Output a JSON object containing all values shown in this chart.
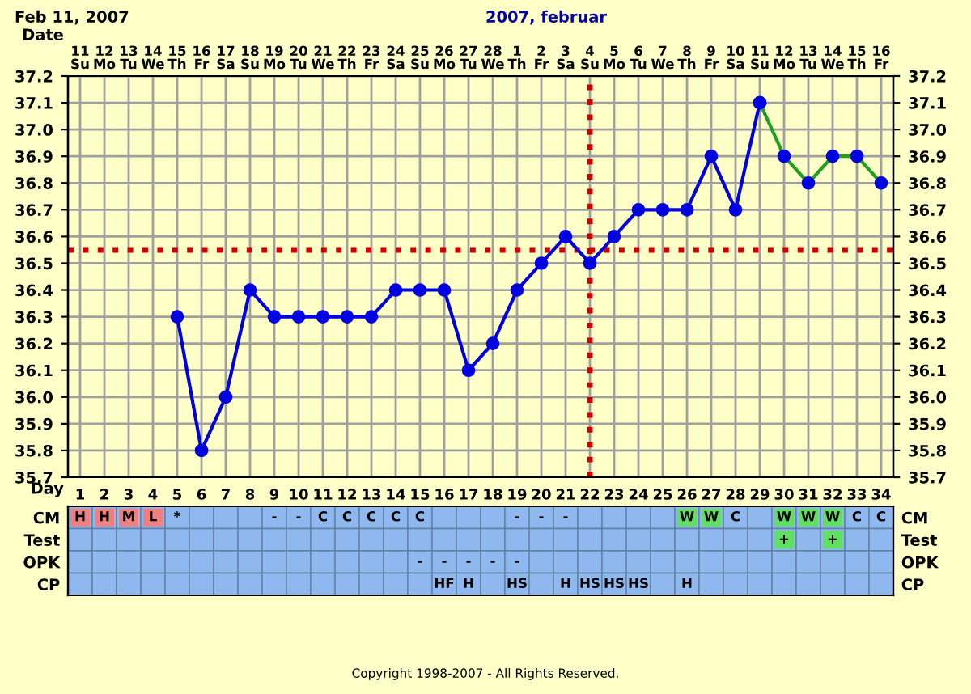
{
  "chart_data": [
    {
      "type": "line",
      "title": "Feb 11, 2007",
      "subtitle": "2007, februar",
      "xlabel": "Day",
      "x2label": "Date",
      "categories": [
        "1",
        "2",
        "3",
        "4",
        "5",
        "6",
        "7",
        "8",
        "9",
        "10",
        "11",
        "12",
        "13",
        "14",
        "15",
        "16",
        "17",
        "18",
        "19",
        "20",
        "21",
        "22",
        "23",
        "24",
        "25",
        "26",
        "27",
        "28",
        "29",
        "30",
        "31",
        "32",
        "33",
        "34"
      ],
      "series": [
        {
          "color": "#0000e0",
          "values": [
            null,
            null,
            null,
            null,
            36.3,
            35.8,
            36.0,
            36.4,
            36.3,
            36.3,
            36.3,
            36.3,
            36.3,
            36.4,
            36.4,
            36.4,
            36.1,
            36.2,
            36.4,
            36.5,
            36.6,
            36.5,
            36.6,
            36.7,
            36.7,
            36.7,
            36.9,
            36.7,
            37.1,
            null,
            null,
            null,
            null,
            null
          ]
        },
        {
          "color": "#20a020",
          "values": [
            null,
            null,
            null,
            null,
            null,
            null,
            null,
            null,
            null,
            null,
            null,
            null,
            null,
            null,
            null,
            null,
            null,
            null,
            null,
            null,
            null,
            null,
            null,
            null,
            null,
            null,
            null,
            null,
            37.1,
            36.9,
            36.8,
            36.9,
            36.9,
            36.8
          ]
        }
      ],
      "marker": "circle",
      "ylim": [
        35.7,
        37.2
      ],
      "yticks": [
        35.7,
        35.8,
        35.9,
        {
          "value": 36,
          "label": "36.0"
        },
        36.1,
        36.2,
        36.3,
        36.4,
        36.5,
        36.6,
        36.7,
        36.8,
        36.9,
        {
          "value": 37,
          "label": "37.0"
        },
        37.1,
        37.2
      ],
      "y2lim": [
        35.7,
        37.2
      ],
      "y2ticks": [
        35.7,
        35.8,
        35.9,
        {
          "value": 36,
          "label": "36.0"
        },
        36.1,
        36.2,
        36.3,
        36.4,
        36.5,
        36.6,
        36.7,
        36.8,
        36.9,
        {
          "value": 37,
          "label": "37.0"
        },
        37.1,
        37.2
      ],
      "grid": true,
      "ref_lines": [
        {
          "axis": "y",
          "value": 36.55,
          "color": "#cc0000",
          "line_style": "dotted"
        },
        {
          "axis": "x",
          "value": "22",
          "color": "#cc0000",
          "line_style": "dotted"
        }
      ],
      "x2lim": [
        "2007-02-10T12:00",
        "2007-03-16T12:00"
      ],
      "x2ticks": [
        {
          "value": "2007-02-11",
          "label": "11\nSu"
        },
        {
          "value": "2007-02-12",
          "label": "12\nMo"
        },
        {
          "value": "2007-02-13",
          "label": "13\nTu"
        },
        {
          "value": "2007-02-14",
          "label": "14\nWe"
        },
        {
          "value": "2007-02-15",
          "label": "15\nTh"
        },
        {
          "value": "2007-02-16",
          "label": "16\nFr"
        },
        {
          "value": "2007-02-17",
          "label": "17\nSa"
        },
        {
          "value": "2007-02-18",
          "label": "18\nSu"
        },
        {
          "value": "2007-02-19",
          "label": "19\nMo"
        },
        {
          "value": "2007-02-20",
          "label": "20\nTu"
        },
        {
          "value": "2007-02-21",
          "label": "21\nWe"
        },
        {
          "value": "2007-02-22",
          "label": "22\nTh"
        },
        {
          "value": "2007-02-23",
          "label": "23\nFr"
        },
        {
          "value": "2007-02-24",
          "label": "24\nSa"
        },
        {
          "value": "2007-02-25",
          "label": "25\nSu"
        },
        {
          "value": "2007-02-26",
          "label": "26\nMo"
        },
        {
          "value": "2007-02-27",
          "label": "27\nTu"
        },
        {
          "value": "2007-02-28",
          "label": "28\nWe"
        },
        {
          "value": "2007-03-01",
          "label": "1\nTh"
        },
        {
          "value": "2007-03-02",
          "label": "2\nFr"
        },
        {
          "value": "2007-03-03",
          "label": "3\nSa"
        },
        {
          "value": "2007-03-04",
          "label": "4\nSu"
        },
        {
          "value": "2007-03-05",
          "label": "5\nMo"
        },
        {
          "value": "2007-03-06",
          "label": "6\nTu"
        },
        {
          "value": "2007-03-07",
          "label": "7\nWe"
        },
        {
          "value": "2007-03-08",
          "label": "8\nTh"
        },
        {
          "value": "2007-03-09",
          "label": "9\nFr"
        },
        {
          "value": "2007-03-10",
          "label": "10\nSa"
        },
        {
          "value": "2007-03-11",
          "label": "11\nSu"
        },
        {
          "value": "2007-03-12",
          "label": "12\nMo"
        },
        {
          "value": "2007-03-13",
          "label": "13\nTu"
        },
        {
          "value": "2007-03-14",
          "label": "14\nWe"
        },
        {
          "value": "2007-03-15",
          "label": "15\nTh"
        },
        {
          "value": "2007-03-16",
          "label": "16\nFr"
        }
      ]
    },
    {
      "type": "other",
      "color": "#8fb8ef",
      "y_categories": [
        "CM",
        "Test",
        "OPK",
        "CP"
      ],
      "y2_categories": [
        "CM",
        "Test",
        "OPK",
        "CP"
      ],
      "cell_labels": [
        [
          "H",
          "H",
          "M",
          "L",
          "*",
          null,
          null,
          null,
          "-",
          "-",
          "C",
          "C",
          "C",
          "C",
          "C",
          null,
          null,
          null,
          "-",
          "-",
          "-",
          null,
          null,
          null,
          null,
          "W",
          "W",
          "C",
          null,
          "W",
          "W",
          "W",
          "C",
          "C"
        ],
        [
          null,
          null,
          null,
          null,
          null,
          null,
          null,
          null,
          null,
          null,
          null,
          null,
          null,
          null,
          null,
          null,
          null,
          null,
          null,
          null,
          null,
          null,
          null,
          null,
          null,
          null,
          null,
          null,
          null,
          "+",
          null,
          "+",
          null,
          null
        ],
        [
          null,
          null,
          null,
          null,
          null,
          null,
          null,
          null,
          null,
          null,
          null,
          null,
          null,
          null,
          "-",
          "-",
          "-",
          "-",
          "-",
          null,
          null,
          null,
          null,
          null,
          null,
          null,
          null,
          null,
          null,
          null,
          null,
          null,
          null,
          null
        ],
        [
          null,
          null,
          null,
          null,
          null,
          null,
          null,
          null,
          null,
          null,
          null,
          null,
          null,
          null,
          null,
          "HF",
          "H",
          null,
          "HS",
          null,
          "H",
          "HS",
          "HS",
          "HS",
          null,
          "H",
          null,
          null,
          null,
          null,
          null,
          null,
          null,
          null
        ]
      ],
      "colors": [
        [
          "#f08080",
          "#f08080",
          "#f08080",
          "#f08080",
          null,
          null,
          null,
          null,
          null,
          null,
          null,
          null,
          null,
          null,
          null,
          null,
          null,
          null,
          null,
          null,
          null,
          null,
          null,
          null,
          null,
          "#60e060",
          "#60e060",
          null,
          null,
          "#60e060",
          "#60e060",
          "#60e060",
          null,
          null
        ],
        [
          null,
          null,
          null,
          null,
          null,
          null,
          null,
          null,
          null,
          null,
          null,
          null,
          null,
          null,
          null,
          null,
          null,
          null,
          null,
          null,
          null,
          null,
          null,
          null,
          null,
          null,
          null,
          null,
          null,
          "#60e060",
          null,
          "#60e060",
          null,
          null
        ],
        [
          null,
          null,
          null,
          null,
          null,
          null,
          null,
          null,
          null,
          null,
          null,
          null,
          null,
          null,
          null,
          null,
          null,
          null,
          null,
          null,
          null,
          null,
          null,
          null,
          null,
          null,
          null,
          null,
          null,
          null,
          null,
          null,
          null,
          null
        ],
        [
          null,
          null,
          null,
          null,
          null,
          null,
          null,
          null,
          null,
          null,
          null,
          null,
          null,
          null,
          null,
          null,
          null,
          null,
          null,
          null,
          null,
          null,
          null,
          null,
          null,
          null,
          null,
          null,
          null,
          null,
          null,
          null,
          null,
          null
        ]
      ],
      "annotations": [
        "Copyright 1998-2007 - All Rights Reserved."
      ]
    }
  ]
}
